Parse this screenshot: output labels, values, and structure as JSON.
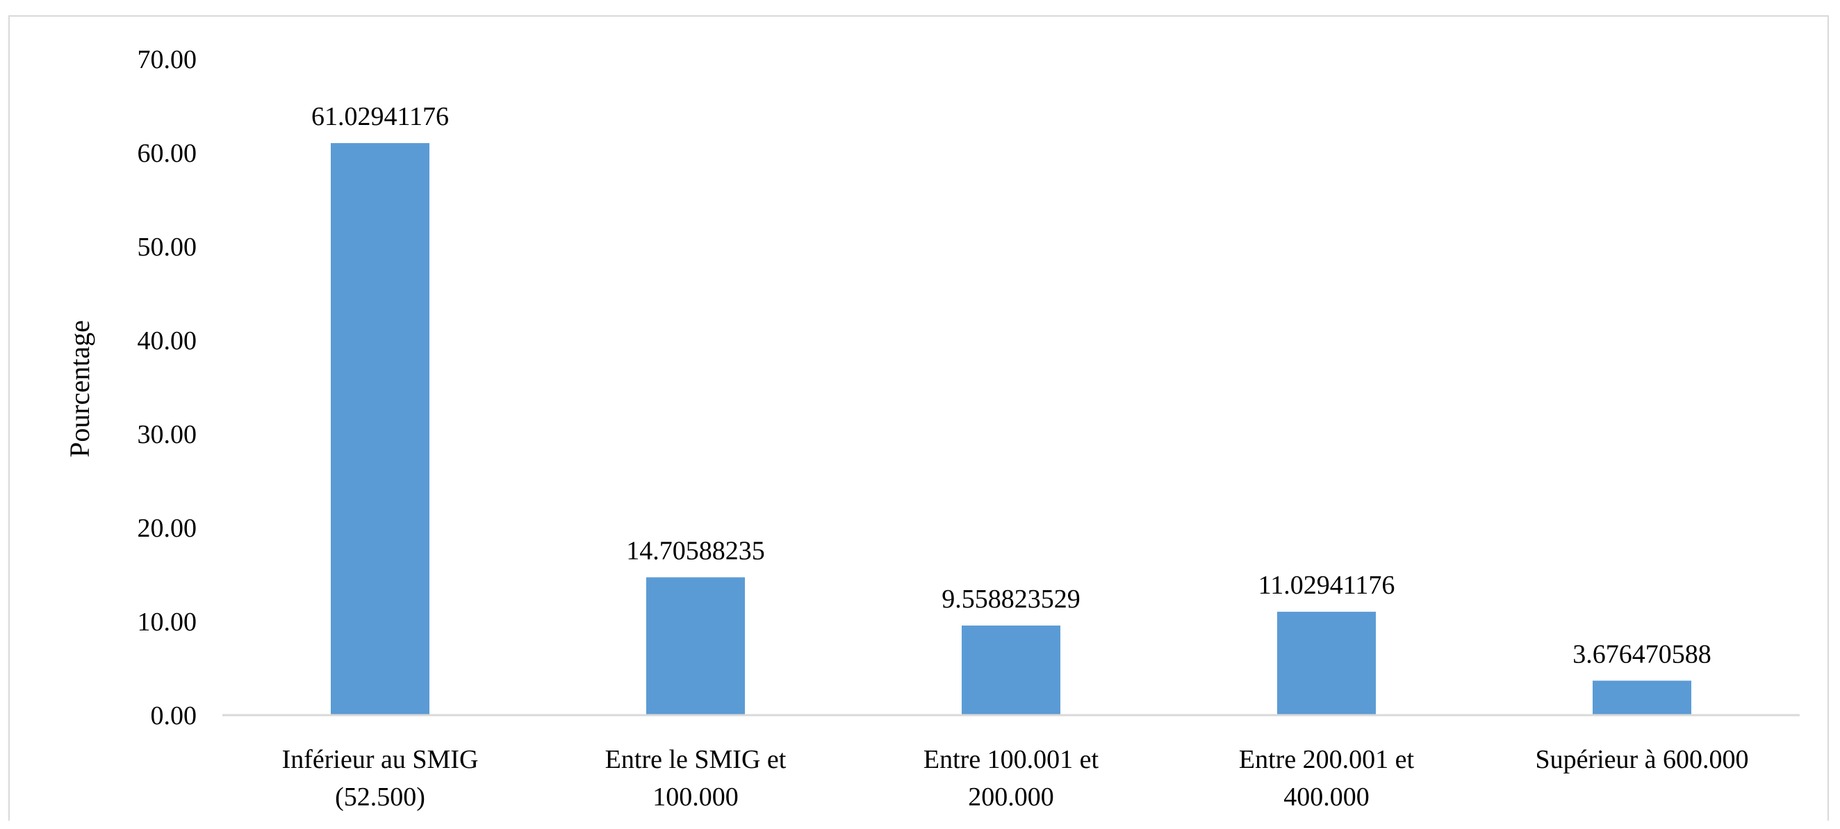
{
  "chart_data": {
    "type": "bar",
    "title": "",
    "xlabel": "",
    "ylabel": "Pourcentage",
    "ylim": [
      0,
      70
    ],
    "yticks": [
      "0.00",
      "10.00",
      "20.00",
      "30.00",
      "40.00",
      "50.00",
      "60.00",
      "70.00"
    ],
    "categories": [
      [
        "Inférieur au SMIG",
        "(52.500)"
      ],
      [
        "Entre le SMIG et",
        "100.000"
      ],
      [
        "Entre 100.001 et",
        "200.000"
      ],
      [
        "Entre 200.001 et",
        "400.000"
      ],
      [
        "Supérieur à 600.000"
      ]
    ],
    "values": [
      61.02941176,
      14.70588235,
      9.558823529,
      11.02941176,
      3.676470588
    ],
    "data_labels": [
      "61.02941176",
      "14.70588235",
      "9.558823529",
      "11.02941176",
      "3.676470588"
    ],
    "bar_color": "#5b9bd5",
    "grid": false,
    "legend": "none"
  }
}
